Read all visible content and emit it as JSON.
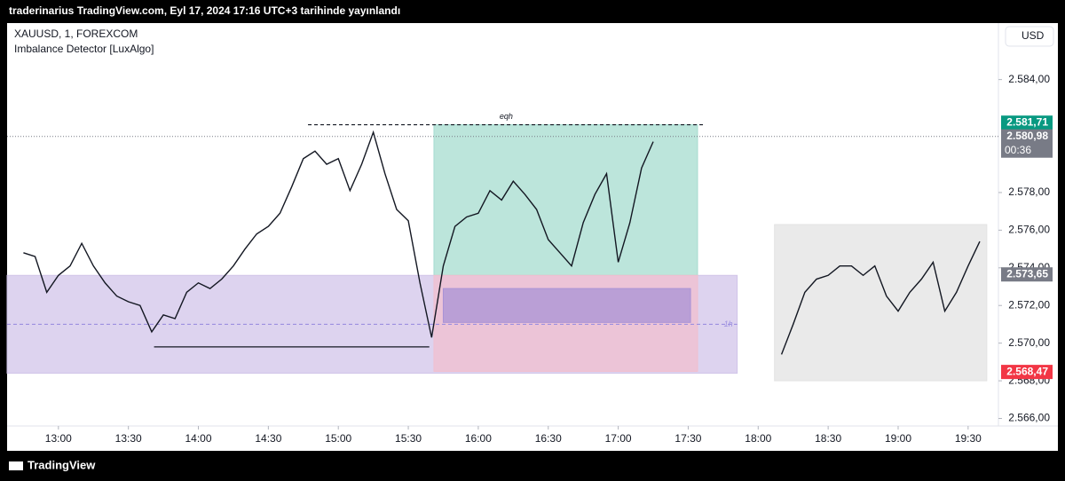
{
  "header": {
    "title": "traderinarius TradingView.com, Eyl 17, 2024 17:16 UTC+3 tarihinde yayınlandı"
  },
  "legend": {
    "symbol": "XAUUSD, 1, FOREXCOM",
    "indicator": "Imbalance Detector [LuxAlgo]"
  },
  "currency": "USD",
  "footer": {
    "brand": "TradingView"
  },
  "chart_data": {
    "type": "line",
    "xlim": [
      "12:38",
      "19:43"
    ],
    "ylim": [
      2565.6,
      2587.0
    ],
    "xticks": [
      "13:00",
      "13:30",
      "14:00",
      "14:30",
      "15:00",
      "15:30",
      "16:00",
      "16:30",
      "17:00",
      "17:30",
      "18:00",
      "18:30",
      "19:00",
      "19:30"
    ],
    "yticks": [
      {
        "value": 2566,
        "label": "2.566,00"
      },
      {
        "value": 2568,
        "label": "2.568,00"
      },
      {
        "value": 2570,
        "label": "2.570,00"
      },
      {
        "value": 2572,
        "label": "2.572,00"
      },
      {
        "value": 2574,
        "label": "2.574,00"
      },
      {
        "value": 2576,
        "label": "2.576,00"
      },
      {
        "value": 2578,
        "label": "2.578,00"
      },
      {
        "value": 2584,
        "label": "2.584,00"
      }
    ],
    "series": [
      {
        "color": "#131722",
        "x": [
          "12:45",
          "12:50",
          "12:55",
          "13:00",
          "13:05",
          "13:10",
          "13:15",
          "13:20",
          "13:25",
          "13:30",
          "13:35",
          "13:40",
          "13:45",
          "13:50",
          "13:55",
          "14:00",
          "14:05",
          "14:10",
          "14:15",
          "14:20",
          "14:25",
          "14:30",
          "14:35",
          "14:40",
          "14:45",
          "14:50",
          "14:55",
          "15:00",
          "15:05",
          "15:10",
          "15:15",
          "15:20",
          "15:25",
          "15:30",
          "15:35",
          "15:40",
          "15:45",
          "15:50",
          "15:55",
          "16:00",
          "16:05",
          "16:10",
          "16:15",
          "16:20",
          "16:25",
          "16:30",
          "16:35",
          "16:40",
          "16:45",
          "16:50",
          "16:55",
          "17:00",
          "17:05",
          "17:10",
          "17:15"
        ],
        "values": [
          2574.8,
          2574.6,
          2572.7,
          2573.6,
          2574.1,
          2575.3,
          2574.1,
          2573.2,
          2572.5,
          2572.2,
          2572.0,
          2570.6,
          2571.5,
          2571.3,
          2572.7,
          2573.2,
          2572.9,
          2573.4,
          2574.1,
          2575.0,
          2575.8,
          2576.2,
          2576.9,
          2578.3,
          2579.8,
          2580.2,
          2579.5,
          2579.8,
          2578.1,
          2579.5,
          2581.2,
          2579.0,
          2577.1,
          2576.5,
          2573.2,
          2570.3,
          2574.1,
          2576.2,
          2576.7,
          2576.9,
          2578.1,
          2577.6,
          2578.6,
          2577.9,
          2577.1,
          2575.5,
          2574.8,
          2574.1,
          2576.4,
          2577.9,
          2579.0,
          2574.3,
          2576.4,
          2579.3,
          2580.7
        ]
      },
      {
        "color": "#131722",
        "x": [
          "18:10",
          "18:15",
          "18:20",
          "18:25",
          "18:30",
          "18:35",
          "18:40",
          "18:45",
          "18:50",
          "18:55",
          "19:00",
          "19:05",
          "19:10",
          "19:15",
          "19:20",
          "19:25",
          "19:30",
          "19:35"
        ],
        "values": [
          2569.4,
          2571.0,
          2572.7,
          2573.4,
          2573.6,
          2574.1,
          2574.1,
          2573.6,
          2574.1,
          2572.5,
          2571.7,
          2572.7,
          2573.4,
          2574.3,
          2571.7,
          2572.7,
          2574.1,
          2575.4
        ]
      }
    ],
    "zones": [
      {
        "from": "12:38",
        "to": "17:51",
        "low": 2568.4,
        "high": 2573.6,
        "color": "#d1c4e9"
      },
      {
        "from": "15:41",
        "to": "17:34",
        "low": 2573.6,
        "high": 2581.6,
        "color": "#a5dccf"
      },
      {
        "from": "15:41",
        "to": "17:34",
        "low": 2568.5,
        "high": 2573.6,
        "color": "#f0bfcf"
      },
      {
        "from": "15:45",
        "to": "17:31",
        "low": 2571.1,
        "high": 2572.9,
        "color": "#a993d6"
      },
      {
        "from": "18:07",
        "to": "19:38",
        "low": 2568.0,
        "high": 2576.3,
        "color": "#e3e3e3"
      }
    ],
    "levels": [
      {
        "from": "14:47",
        "to": "17:37",
        "price": 2581.6,
        "label": "eqh",
        "color": "#131722"
      },
      {
        "from": "13:41",
        "to": "15:39",
        "price": 2569.8,
        "color": "#131722"
      },
      {
        "from": "12:38",
        "to": "17:51",
        "price": 2571.0,
        "label": "1h",
        "color": "#9c8fe0"
      }
    ],
    "price_markers": [
      {
        "value": 2581.71,
        "label": "2.581,71",
        "color": "#089981"
      },
      {
        "value": 2580.98,
        "label": "2.580,98",
        "color": "#787b86",
        "sub": "00:36"
      },
      {
        "value": 2573.65,
        "label": "2.573,65",
        "color": "#787b86"
      },
      {
        "value": 2568.47,
        "label": "2.568,47",
        "color": "#f23645"
      }
    ]
  }
}
